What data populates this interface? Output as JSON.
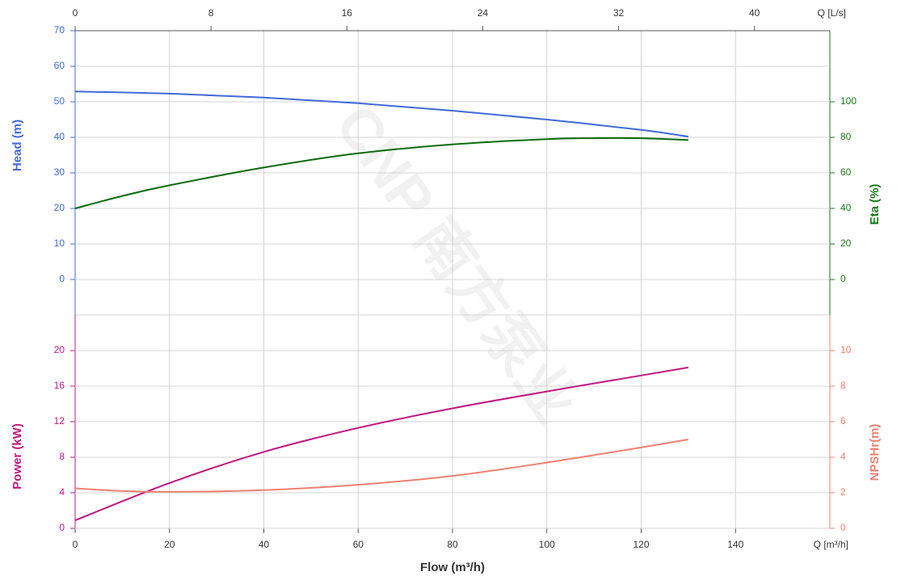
{
  "watermark": "CNP 南方泵业",
  "chart_data": [
    {
      "type": "line",
      "ylabel": "Head (m)",
      "y2label": "Eta (%)",
      "x2label": "Q [L/s]",
      "x2lim": [
        0,
        44.44
      ],
      "x2ticks": [
        0,
        8,
        16,
        24,
        32,
        40
      ],
      "xlim": [
        0,
        160
      ],
      "ylim": [
        -10,
        70
      ],
      "yticks": [
        0,
        10,
        20,
        30,
        40,
        50,
        60,
        70
      ],
      "ycolor": "#4169d8",
      "y2lim": [
        -20,
        140
      ],
      "y2ticks": [
        0,
        20,
        40,
        60,
        80,
        100
      ],
      "y2color": "#1a7a1a",
      "series": [
        {
          "name": "Head",
          "color": "#4169d8",
          "x": [
            0,
            20,
            40,
            60,
            80,
            100,
            120,
            130
          ],
          "values": [
            52.9,
            52.3,
            51.2,
            49.6,
            47.5,
            45.0,
            42.1,
            40.2
          ]
        },
        {
          "name": "Eta",
          "color": "#0b6a0b",
          "axis": "y2",
          "x": [
            0,
            10,
            20,
            40,
            60,
            80,
            100,
            110,
            120,
            130
          ],
          "values": [
            40,
            47,
            53,
            63,
            71,
            76,
            79,
            79.5,
            79.5,
            78.5
          ]
        }
      ]
    },
    {
      "type": "line",
      "ylabel": "Power (kW)",
      "y2label": "NPSHr(m)",
      "xlabel": "Flow (m³/h)",
      "xunit": "Q [m³/h]",
      "xlim": [
        0,
        160
      ],
      "xticks": [
        0,
        20,
        40,
        60,
        80,
        100,
        120,
        140
      ],
      "ylim": [
        0,
        24
      ],
      "yticks": [
        0,
        4,
        8,
        12,
        16,
        20
      ],
      "ycolor": "#c0177f",
      "y2lim": [
        0,
        12
      ],
      "y2ticks": [
        0,
        2,
        4,
        6,
        8,
        10
      ],
      "y2color": "#f08070",
      "series": [
        {
          "name": "Power",
          "color": "#c0177f",
          "x": [
            0,
            20,
            40,
            60,
            80,
            100,
            120,
            130
          ],
          "values": [
            0.9,
            5.1,
            8.6,
            11.3,
            13.5,
            15.4,
            17.2,
            18.1
          ]
        },
        {
          "name": "NPSHr",
          "color": "#f08070",
          "axis": "y2",
          "x": [
            0,
            10,
            20,
            40,
            60,
            80,
            100,
            120,
            130
          ],
          "values": [
            2.25,
            2.1,
            2.05,
            2.15,
            2.45,
            2.95,
            3.7,
            4.55,
            5.0
          ]
        }
      ]
    }
  ]
}
